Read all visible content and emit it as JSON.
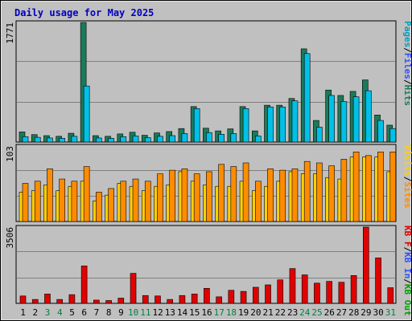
{
  "title": "Daily usage for May 2025",
  "colors": {
    "background": "#c0c0c0",
    "title_text": "#0000c0",
    "hits": "#1a7a5a",
    "files": "#00c0e8",
    "pages": "#00a0c0",
    "visits": "#ffd000",
    "sites": "#ff8c00",
    "kb_out": "#00a000",
    "kb_in": "#3050ff",
    "kb_f": "#e00000",
    "grid": "#808080",
    "weekend": "#008040",
    "weekday": "#000000"
  },
  "chart_data": [
    {
      "type": "bar",
      "panel": "top",
      "ymax_label": "1771",
      "ylim": [
        0,
        1771
      ],
      "legend": [
        {
          "label": "Pages",
          "color": "#00a0c0"
        },
        {
          "label": "/",
          "color": "#000000"
        },
        {
          "label": "Files",
          "color": "#3050ff"
        },
        {
          "label": "/",
          "color": "#000000"
        },
        {
          "label": "Hits",
          "color": "#1a7a5a"
        }
      ],
      "categories": [
        "1",
        "2",
        "3",
        "4",
        "5",
        "6",
        "7",
        "8",
        "9",
        "10",
        "11",
        "12",
        "13",
        "14",
        "15",
        "16",
        "17",
        "18",
        "19",
        "20",
        "21",
        "22",
        "23",
        "24",
        "25",
        "26",
        "27",
        "28",
        "29",
        "30",
        "31"
      ],
      "series": [
        {
          "name": "Hits",
          "values": [
            150,
            110,
            95,
            85,
            130,
            1771,
            95,
            85,
            120,
            145,
            100,
            135,
            155,
            200,
            525,
            205,
            165,
            195,
            525,
            165,
            545,
            545,
            645,
            1380,
            320,
            770,
            690,
            750,
            920,
            400,
            250
          ]
        },
        {
          "name": "Files",
          "values": [
            80,
            70,
            60,
            55,
            85,
            830,
            60,
            55,
            80,
            90,
            65,
            85,
            95,
            125,
            495,
            140,
            115,
            125,
            495,
            90,
            520,
            520,
            610,
            1310,
            220,
            690,
            600,
            670,
            760,
            320,
            200
          ]
        }
      ]
    },
    {
      "type": "bar",
      "panel": "middle",
      "ymax_label": "103",
      "ylim": [
        0,
        103
      ],
      "legend": [
        {
          "label": "Visits",
          "color": "#ffd000"
        },
        {
          "label": "/",
          "color": "#000000"
        },
        {
          "label": "Sites",
          "color": "#ff8c00"
        }
      ],
      "series": [
        {
          "name": "Visits",
          "values": [
            40,
            42,
            50,
            42,
            48,
            55,
            28,
            36,
            52,
            48,
            42,
            48,
            50,
            68,
            55,
            50,
            48,
            48,
            55,
            42,
            48,
            55,
            68,
            65,
            65,
            60,
            58,
            88,
            88,
            88,
            68
          ]
        },
        {
          "name": "Sites",
          "values": [
            52,
            55,
            72,
            58,
            55,
            75,
            40,
            45,
            55,
            58,
            55,
            65,
            70,
            72,
            65,
            68,
            78,
            75,
            80,
            55,
            72,
            70,
            72,
            82,
            80,
            76,
            85,
            95,
            90,
            95,
            95
          ]
        }
      ]
    },
    {
      "type": "bar",
      "panel": "bottom",
      "ymax_label": "3506",
      "ylim": [
        0,
        3506
      ],
      "legend": [
        {
          "label": "KB F",
          "color": "#e00000"
        },
        {
          "label": "/",
          "color": "#000000"
        },
        {
          "label": "KB In",
          "color": "#3050ff"
        },
        {
          "label": "/",
          "color": "#000000"
        },
        {
          "label": "KB Out",
          "color": "#00a000"
        }
      ],
      "series": [
        {
          "name": "KB F",
          "values": [
            340,
            180,
            430,
            180,
            400,
            1720,
            150,
            130,
            240,
            1380,
            360,
            340,
            180,
            360,
            430,
            690,
            300,
            600,
            550,
            740,
            850,
            1080,
            1600,
            1310,
            930,
            1010,
            970,
            1280,
            3506,
            2090,
            720
          ]
        }
      ]
    }
  ],
  "x_labels": [
    {
      "label": "1",
      "weekend": false
    },
    {
      "label": "2",
      "weekend": false
    },
    {
      "label": "3",
      "weekend": true
    },
    {
      "label": "4",
      "weekend": true
    },
    {
      "label": "5",
      "weekend": false
    },
    {
      "label": "6",
      "weekend": false
    },
    {
      "label": "7",
      "weekend": false
    },
    {
      "label": "8",
      "weekend": false
    },
    {
      "label": "9",
      "weekend": false
    },
    {
      "label": "10",
      "weekend": true
    },
    {
      "label": "11",
      "weekend": true
    },
    {
      "label": "12",
      "weekend": false
    },
    {
      "label": "13",
      "weekend": false
    },
    {
      "label": "14",
      "weekend": false
    },
    {
      "label": "15",
      "weekend": false
    },
    {
      "label": "16",
      "weekend": false
    },
    {
      "label": "17",
      "weekend": true
    },
    {
      "label": "18",
      "weekend": true
    },
    {
      "label": "19",
      "weekend": false
    },
    {
      "label": "20",
      "weekend": false
    },
    {
      "label": "21",
      "weekend": false
    },
    {
      "label": "22",
      "weekend": false
    },
    {
      "label": "23",
      "weekend": false
    },
    {
      "label": "24",
      "weekend": true
    },
    {
      "label": "25",
      "weekend": true
    },
    {
      "label": "26",
      "weekend": false
    },
    {
      "label": "27",
      "weekend": false
    },
    {
      "label": "28",
      "weekend": false
    },
    {
      "label": "29",
      "weekend": false
    },
    {
      "label": "30",
      "weekend": false
    },
    {
      "label": "31",
      "weekend": true
    }
  ]
}
